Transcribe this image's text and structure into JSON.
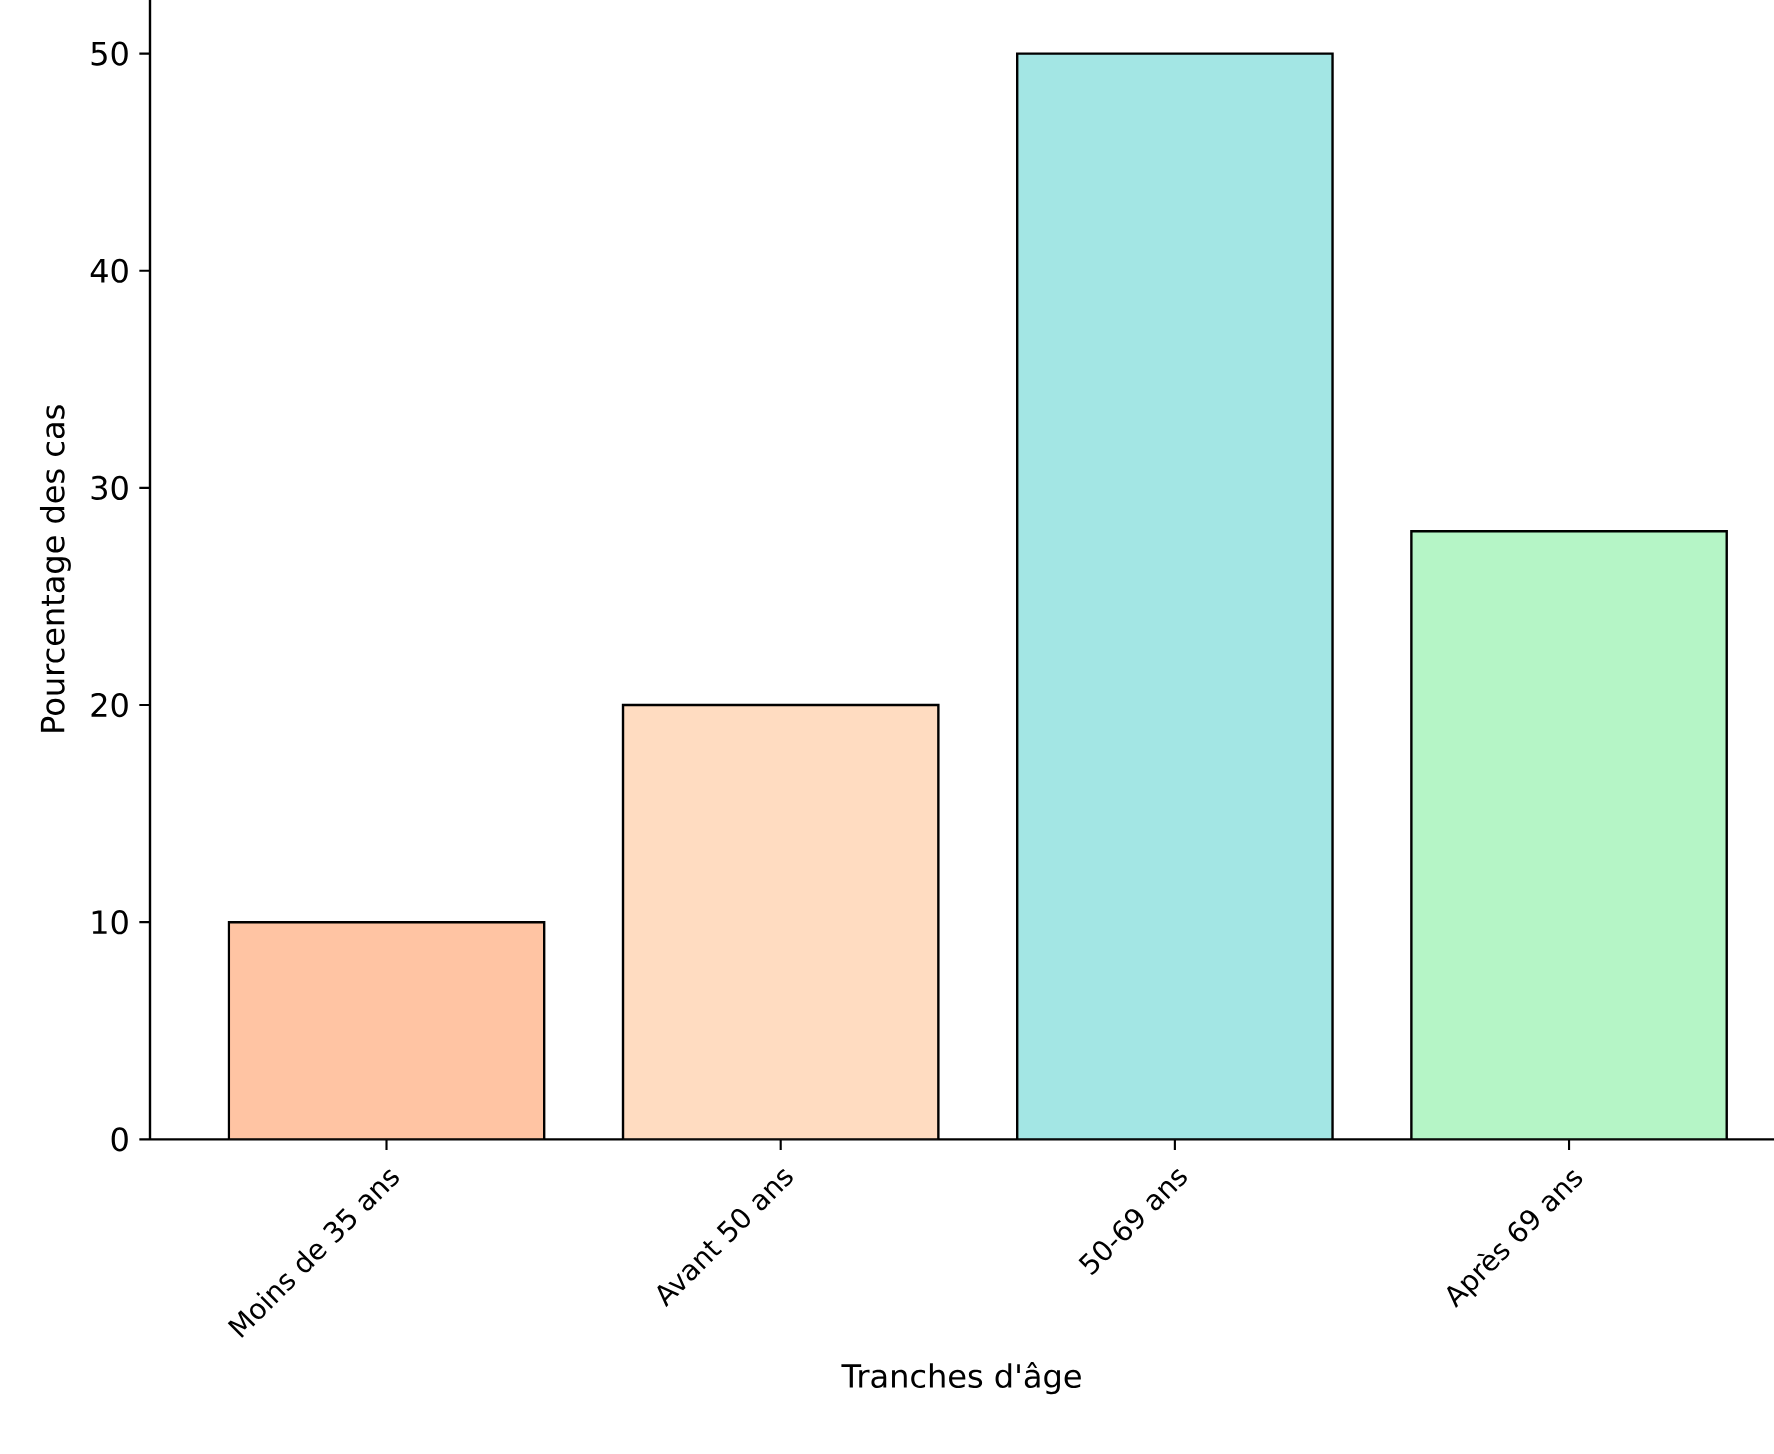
{
  "chart_data": {
    "type": "bar",
    "xlabel": "Tranches d'âge",
    "ylabel": "Pourcentage des cas",
    "categories": [
      "Moins de 35 ans",
      "Avant 50 ans",
      "50-69 ans",
      "Après 69 ans"
    ],
    "values": [
      10,
      20,
      50,
      28
    ],
    "colors": [
      "#ffc4a3",
      "#ffdcc1",
      "#a3e6e4",
      "#b5f5c6"
    ],
    "ylim": [
      0,
      52.5
    ],
    "yticks": [
      0,
      10,
      20,
      30,
      40,
      50
    ]
  }
}
